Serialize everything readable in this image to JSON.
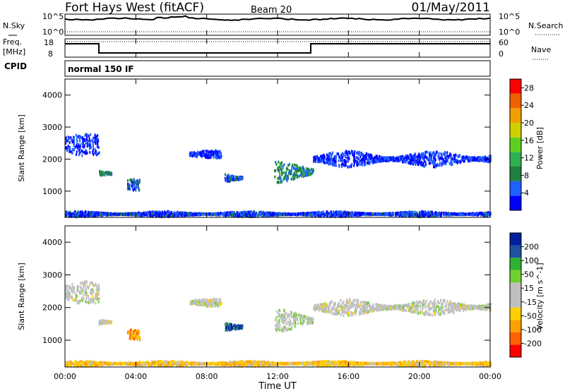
{
  "header": {
    "station": "Fort Hays West (fitACF)",
    "beam": "Beam 20",
    "date": "01/May/2011"
  },
  "noise_panel": {
    "left_label": "N.Sky",
    "right_label": "N.Search",
    "left_ticks": [
      "10^5",
      "10^0"
    ],
    "right_ticks": [
      "10^5",
      "10^0"
    ]
  },
  "freq_panel": {
    "left_label_1": "Freq.",
    "left_label_2": "[MHz]",
    "left_ticks": [
      "18",
      "8"
    ],
    "right_label": "Nave",
    "right_ticks": [
      "60",
      "0"
    ]
  },
  "cpid": {
    "label": "CPID",
    "program": "normal 150 IF"
  },
  "colors": {
    "power": [
      "#0000ff",
      "#2060ff",
      "#208040",
      "#30b050",
      "#60d020",
      "#d0d000",
      "#f0a000",
      "#f06000",
      "#ff0000"
    ],
    "velocity": [
      "#ff0000",
      "#ff6000",
      "#ffa000",
      "#ffd000",
      "#c0c0c0",
      "#c0c0c0",
      "#70d030",
      "#30b030",
      "#2050a0",
      "#0020a0"
    ]
  },
  "chart_data": [
    {
      "type": "heatmap",
      "title": "Power",
      "ylabel": "Slant Range [km]",
      "xlabel": "",
      "ylim": [
        180,
        4500
      ],
      "xlim": [
        "00:00",
        "24:00"
      ],
      "y_ticks": [
        "1000",
        "2000",
        "3000",
        "4000"
      ],
      "colorbar": {
        "label": "Power [dB]",
        "ticks": [
          "4",
          "8",
          "12",
          "16",
          "20",
          "24",
          "28"
        ],
        "range": [
          0,
          30
        ]
      },
      "regions": [
        {
          "t_start": 0.0,
          "t_end": 1.9,
          "r_center": 2450,
          "r_spread": 350,
          "value": 3
        },
        {
          "t_start": 1.9,
          "t_end": 2.6,
          "r_center": 1550,
          "r_spread": 150,
          "value": 8
        },
        {
          "t_start": 3.5,
          "t_end": 4.2,
          "r_center": 1200,
          "r_spread": 200,
          "value": 6
        },
        {
          "t_start": 7.0,
          "t_end": 8.8,
          "r_center": 2150,
          "r_spread": 120,
          "value": 3
        },
        {
          "t_start": 9.0,
          "t_end": 10.0,
          "r_center": 1400,
          "r_spread": 200,
          "value": 5
        },
        {
          "t_start": 11.8,
          "t_end": 14.0,
          "r_center": 1600,
          "r_spread": 350,
          "value": 8
        },
        {
          "t_start": 14.0,
          "t_end": 24.0,
          "r_center": 2000,
          "r_spread": 250,
          "value": 3
        },
        {
          "t_start": 0.0,
          "t_end": 24.0,
          "r_center": 280,
          "r_spread": 80,
          "value": 4
        }
      ]
    },
    {
      "type": "heatmap",
      "title": "Velocity",
      "ylabel": "Slant Range [km]",
      "xlabel": "Time UT",
      "ylim": [
        180,
        4500
      ],
      "x_ticks": [
        "00:00",
        "04:00",
        "08:00",
        "12:00",
        "16:00",
        "20:00",
        "00:00"
      ],
      "y_ticks": [
        "1000",
        "2000",
        "3000",
        "4000"
      ],
      "colorbar": {
        "label": "Velocity [m s^-1]",
        "ticks": [
          "200",
          "100",
          "50",
          "15",
          "-15",
          "-50",
          "-100",
          "-200"
        ],
        "range": [
          -250,
          250
        ]
      },
      "regions": [
        {
          "t_start": 0.0,
          "t_end": 1.9,
          "r_center": 2450,
          "r_spread": 350,
          "value": 0
        },
        {
          "t_start": 1.9,
          "t_end": 2.6,
          "r_center": 1550,
          "r_spread": 150,
          "value": 0
        },
        {
          "t_start": 3.5,
          "t_end": 4.2,
          "r_center": 1200,
          "r_spread": 200,
          "value": -120
        },
        {
          "t_start": 7.0,
          "t_end": 8.8,
          "r_center": 2150,
          "r_spread": 120,
          "value": 0
        },
        {
          "t_start": 9.0,
          "t_end": 10.0,
          "r_center": 1400,
          "r_spread": 200,
          "value": 180
        },
        {
          "t_start": 11.8,
          "t_end": 14.0,
          "r_center": 1600,
          "r_spread": 350,
          "value": 20
        },
        {
          "t_start": 14.0,
          "t_end": 24.0,
          "r_center": 2000,
          "r_spread": 250,
          "value": 0
        },
        {
          "t_start": 0.0,
          "t_end": 24.0,
          "r_center": 280,
          "r_spread": 80,
          "value": -80
        }
      ]
    }
  ]
}
